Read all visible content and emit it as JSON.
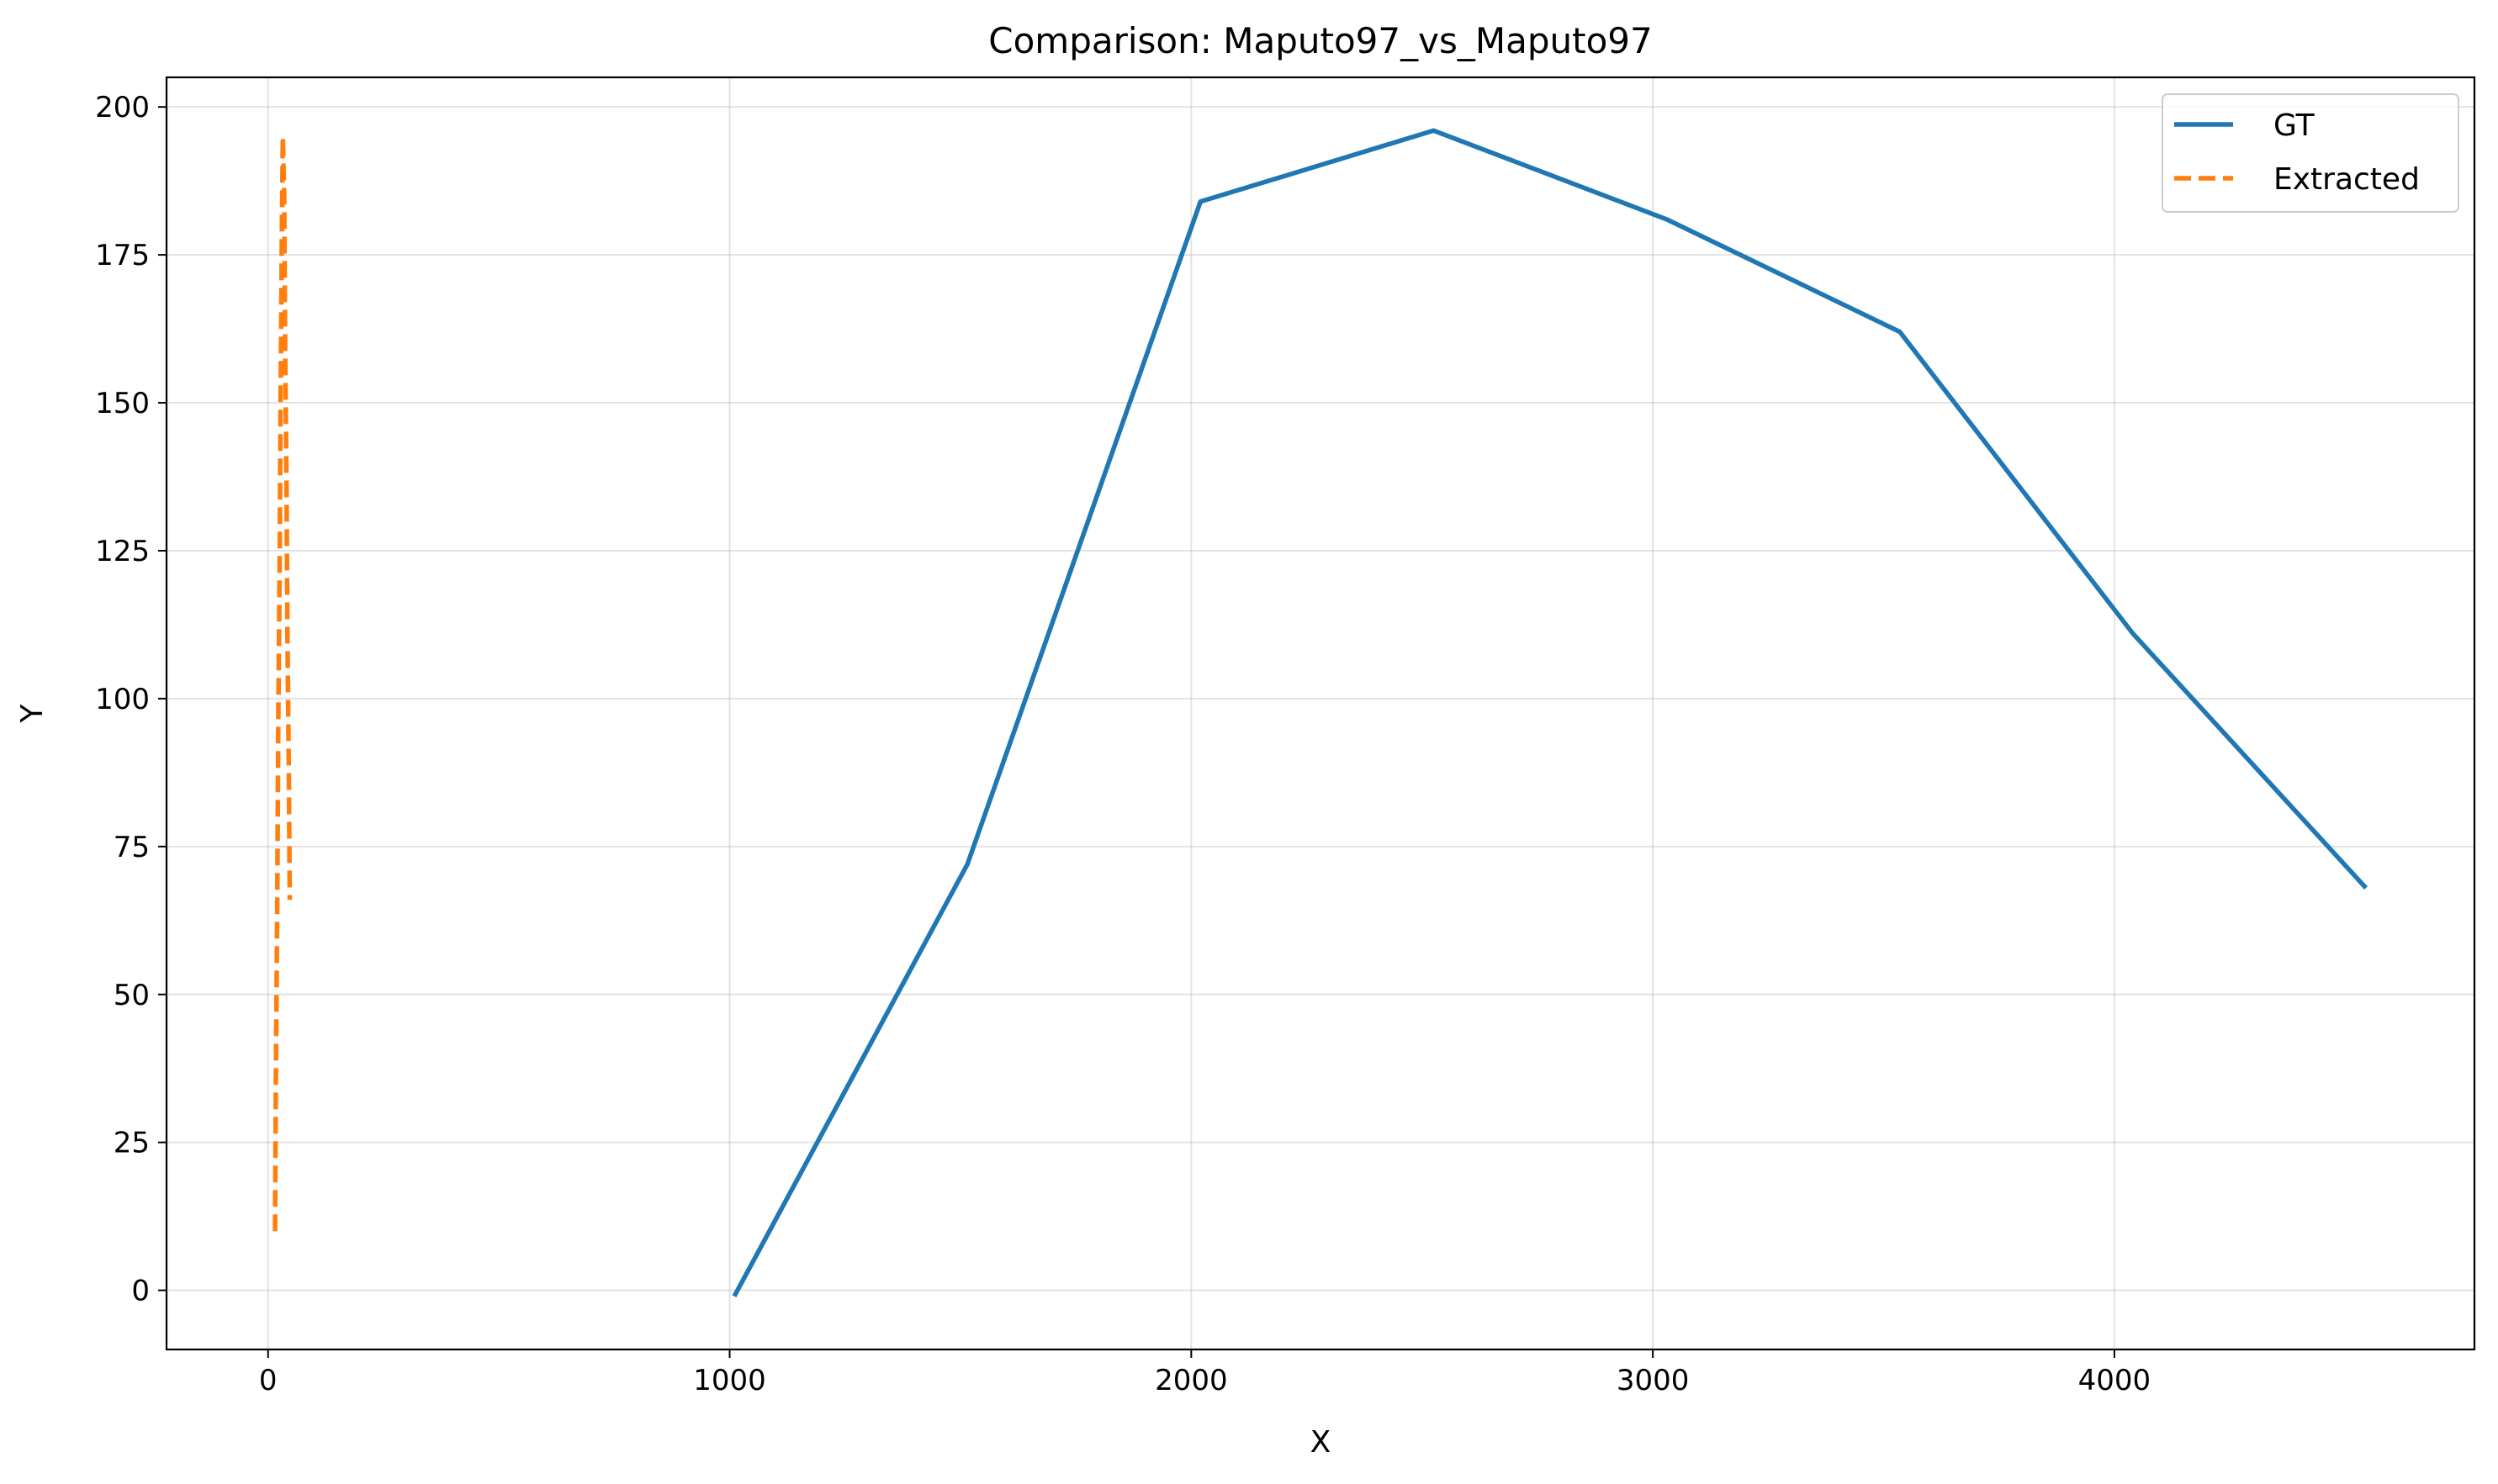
{
  "chart_data": {
    "type": "line",
    "title": "Comparison: Maputo97_vs_Maputo97",
    "xlabel": "X",
    "ylabel": "Y",
    "xlim": [
      -220,
      4780
    ],
    "ylim": [
      -10,
      205
    ],
    "xticks": [
      0,
      1000,
      2000,
      3000,
      4000
    ],
    "yticks": [
      0,
      25,
      50,
      75,
      100,
      125,
      150,
      175,
      200
    ],
    "grid": true,
    "legend_position": "top-right",
    "series": [
      {
        "name": "GT",
        "color": "#1f77b4",
        "style": "solid",
        "x": [
          1010,
          1515,
          2020,
          2525,
          3030,
          3535,
          4040,
          4545
        ],
        "y": [
          -1,
          72,
          184,
          196,
          181,
          162,
          111,
          68
        ]
      },
      {
        "name": "Extracted",
        "color": "#ff7f0e",
        "style": "dashed",
        "x": [
          15,
          17,
          20,
          22,
          25,
          27,
          30,
          32,
          35,
          37,
          40,
          42,
          45,
          47
        ],
        "y": [
          10,
          38,
          66,
          95,
          123,
          151,
          180,
          195,
          185,
          160,
          135,
          110,
          88,
          66
        ]
      }
    ]
  }
}
